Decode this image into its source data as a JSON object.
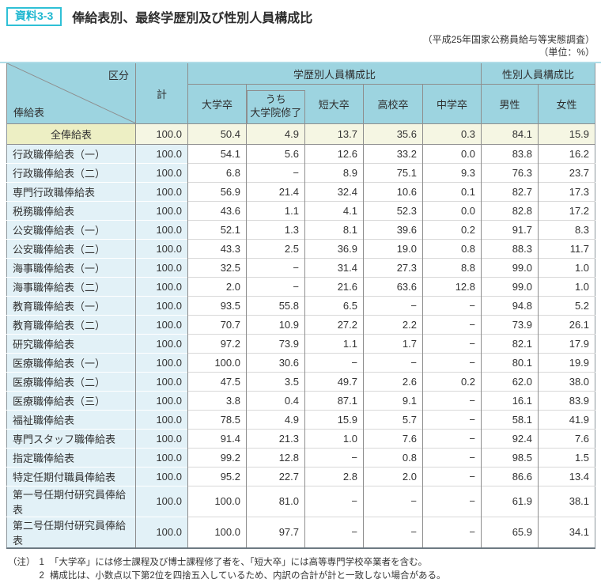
{
  "page": {
    "badge": "資料3-3",
    "title": "俸給表別、最終学歴別及び性別人員構成比",
    "source": "（平成25年国家公務員給与等実態調査）",
    "unit": "（単位：%）"
  },
  "colors": {
    "accent_cyan": "#2fc0d6",
    "header_blue": "#9dd4e0",
    "row_label_blue": "#e2f1f7",
    "highlight_label_yellow": "#edefc4",
    "highlight_cell_cream": "#f5f6e3",
    "grid_gray": "#8e8e8e"
  },
  "table": {
    "corner_top_right": "区分",
    "corner_bottom_left": "俸給表",
    "col_total": "計",
    "group_education": "学歴別人員構成比",
    "group_gender": "性別人員構成比",
    "cols": [
      "大学卒",
      "うち\n大学院修了",
      "短大卒",
      "高校卒",
      "中学卒",
      "男性",
      "女性"
    ],
    "rows": [
      {
        "label": "全俸給表",
        "highlight": true,
        "values": [
          "100.0",
          "50.4",
          "4.9",
          "13.7",
          "35.6",
          "0.3",
          "84.1",
          "15.9"
        ]
      },
      {
        "label": "行政職俸給表（一）",
        "highlight": false,
        "values": [
          "100.0",
          "54.1",
          "5.6",
          "12.6",
          "33.2",
          "0.0",
          "83.8",
          "16.2"
        ]
      },
      {
        "label": "行政職俸給表（二）",
        "highlight": false,
        "values": [
          "100.0",
          "6.8",
          "−",
          "8.9",
          "75.1",
          "9.3",
          "76.3",
          "23.7"
        ]
      },
      {
        "label": "専門行政職俸給表",
        "highlight": false,
        "values": [
          "100.0",
          "56.9",
          "21.4",
          "32.4",
          "10.6",
          "0.1",
          "82.7",
          "17.3"
        ]
      },
      {
        "label": "税務職俸給表",
        "highlight": false,
        "values": [
          "100.0",
          "43.6",
          "1.1",
          "4.1",
          "52.3",
          "0.0",
          "82.8",
          "17.2"
        ]
      },
      {
        "label": "公安職俸給表（一）",
        "highlight": false,
        "values": [
          "100.0",
          "52.1",
          "1.3",
          "8.1",
          "39.6",
          "0.2",
          "91.7",
          "8.3"
        ]
      },
      {
        "label": "公安職俸給表（二）",
        "highlight": false,
        "values": [
          "100.0",
          "43.3",
          "2.5",
          "36.9",
          "19.0",
          "0.8",
          "88.3",
          "11.7"
        ]
      },
      {
        "label": "海事職俸給表（一）",
        "highlight": false,
        "values": [
          "100.0",
          "32.5",
          "−",
          "31.4",
          "27.3",
          "8.8",
          "99.0",
          "1.0"
        ]
      },
      {
        "label": "海事職俸給表（二）",
        "highlight": false,
        "values": [
          "100.0",
          "2.0",
          "−",
          "21.6",
          "63.6",
          "12.8",
          "99.0",
          "1.0"
        ]
      },
      {
        "label": "教育職俸給表（一）",
        "highlight": false,
        "values": [
          "100.0",
          "93.5",
          "55.8",
          "6.5",
          "−",
          "−",
          "94.8",
          "5.2"
        ]
      },
      {
        "label": "教育職俸給表（二）",
        "highlight": false,
        "values": [
          "100.0",
          "70.7",
          "10.9",
          "27.2",
          "2.2",
          "−",
          "73.9",
          "26.1"
        ]
      },
      {
        "label": "研究職俸給表",
        "highlight": false,
        "values": [
          "100.0",
          "97.2",
          "73.9",
          "1.1",
          "1.7",
          "−",
          "82.1",
          "17.9"
        ]
      },
      {
        "label": "医療職俸給表（一）",
        "highlight": false,
        "values": [
          "100.0",
          "100.0",
          "30.6",
          "−",
          "−",
          "−",
          "80.1",
          "19.9"
        ]
      },
      {
        "label": "医療職俸給表（二）",
        "highlight": false,
        "values": [
          "100.0",
          "47.5",
          "3.5",
          "49.7",
          "2.6",
          "0.2",
          "62.0",
          "38.0"
        ]
      },
      {
        "label": "医療職俸給表（三）",
        "highlight": false,
        "values": [
          "100.0",
          "3.8",
          "0.4",
          "87.1",
          "9.1",
          "−",
          "16.1",
          "83.9"
        ]
      },
      {
        "label": "福祉職俸給表",
        "highlight": false,
        "values": [
          "100.0",
          "78.5",
          "4.9",
          "15.9",
          "5.7",
          "−",
          "58.1",
          "41.9"
        ]
      },
      {
        "label": "専門スタッフ職俸給表",
        "highlight": false,
        "values": [
          "100.0",
          "91.4",
          "21.3",
          "1.0",
          "7.6",
          "−",
          "92.4",
          "7.6"
        ]
      },
      {
        "label": "指定職俸給表",
        "highlight": false,
        "values": [
          "100.0",
          "99.2",
          "12.8",
          "−",
          "0.8",
          "−",
          "98.5",
          "1.5"
        ]
      },
      {
        "label": "特定任期付職員俸給表",
        "highlight": false,
        "values": [
          "100.0",
          "95.2",
          "22.7",
          "2.8",
          "2.0",
          "−",
          "86.6",
          "13.4"
        ]
      },
      {
        "label": "第一号任期付研究員俸給表",
        "highlight": false,
        "values": [
          "100.0",
          "100.0",
          "81.0",
          "−",
          "−",
          "−",
          "61.9",
          "38.1"
        ]
      },
      {
        "label": "第二号任期付研究員俸給表",
        "highlight": false,
        "values": [
          "100.0",
          "100.0",
          "97.7",
          "−",
          "−",
          "−",
          "65.9",
          "34.1"
        ]
      }
    ]
  },
  "notes": {
    "label": "（注）",
    "items": [
      {
        "num": "1",
        "text": "「大学卒」には修士課程及び博士課程修了者を、「短大卒」には高等専門学校卒業者を含む。"
      },
      {
        "num": "2",
        "text": "構成比は、小数点以下第2位を四捨五入しているため、内訳の合計が計と一致しない場合がある。"
      }
    ]
  }
}
